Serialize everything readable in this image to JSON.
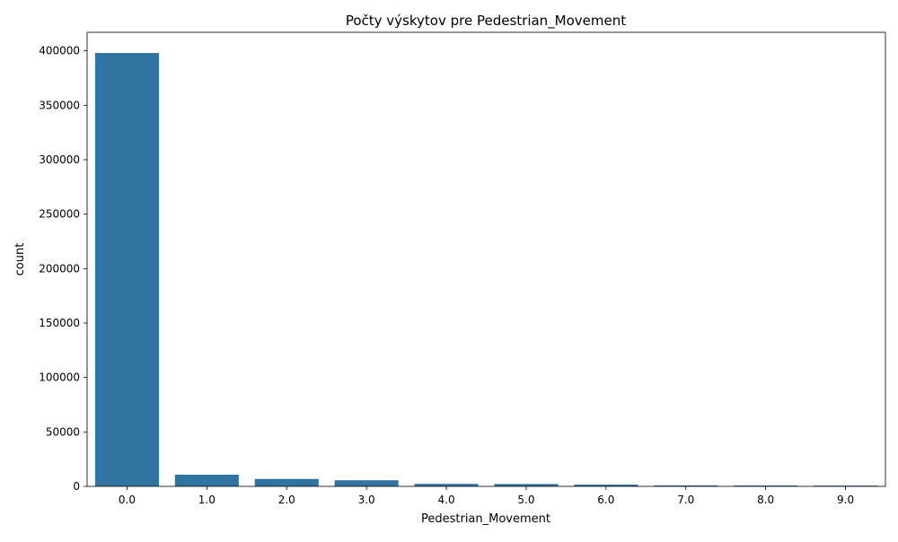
{
  "chart_data": {
    "type": "bar",
    "title": "Počty výskytov pre Pedestrian_Movement",
    "xlabel": "Pedestrian_Movement",
    "ylabel": "count",
    "categories": [
      "0.0",
      "1.0",
      "2.0",
      "3.0",
      "4.0",
      "5.0",
      "6.0",
      "7.0",
      "8.0",
      "9.0"
    ],
    "values": [
      398000,
      10700,
      6800,
      5600,
      2300,
      2200,
      1600,
      900,
      800,
      700
    ],
    "ylim": [
      0,
      417000
    ],
    "yticks": [
      0,
      50000,
      100000,
      150000,
      200000,
      250000,
      300000,
      350000,
      400000
    ],
    "grid": false,
    "bar_color": "#3274a1"
  }
}
